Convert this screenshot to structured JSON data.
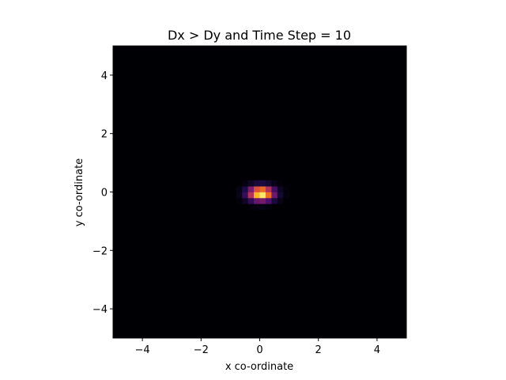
{
  "chart_data": {
    "type": "heatmap",
    "title": "Dx > Dy and Time Step = 10",
    "xlabel": "x co-ordinate",
    "ylabel": "y co-ordinate",
    "xlim": [
      -5,
      5
    ],
    "ylim": [
      -5,
      5
    ],
    "x_ticks": [
      -4,
      -2,
      0,
      2,
      4
    ],
    "y_ticks": [
      -4,
      -2,
      0,
      2,
      4
    ],
    "x_tick_labels": [
      "−4",
      "−2",
      "0",
      "2",
      "4"
    ],
    "y_tick_labels": [
      "−4",
      "−2",
      "0",
      "2",
      "4"
    ],
    "grid": false,
    "legend": "none",
    "colormap": "inferno",
    "background_color": "#000004",
    "grid_cells": 50,
    "peak_value": 1.0,
    "peak_center": [
      0.05,
      -0.05
    ],
    "spread_sigma": [
      0.3,
      0.17
    ]
  }
}
